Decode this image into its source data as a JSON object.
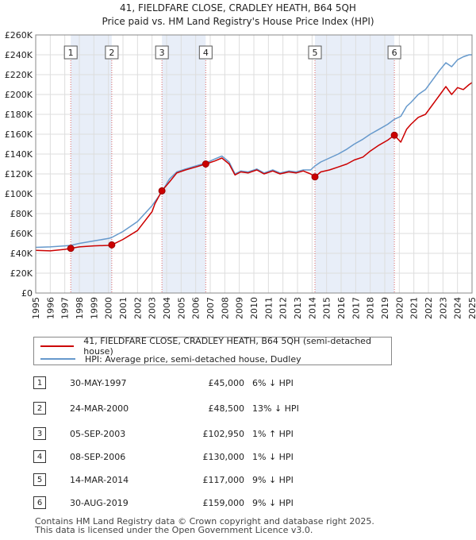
{
  "title_line1": "41, FIELDFARE CLOSE, CRADLEY HEATH, B64 5QH",
  "title_line2": "Price paid vs. HM Land Registry's House Price Index (HPI)",
  "colors": {
    "property": "#cc0000",
    "hpi": "#6699cc",
    "band": "#e8eef8",
    "marker_line": "#dd6666"
  },
  "chart_data": {
    "type": "line",
    "title": "41, FIELDFARE CLOSE, CRADLEY HEATH, B64 5QH",
    "subtitle": "Price paid vs. HM Land Registry's House Price Index (HPI)",
    "xlabel": "",
    "ylabel": "",
    "xlim": [
      1995,
      2025
    ],
    "ylim": [
      0,
      260000
    ],
    "x_ticks": [
      1995,
      1996,
      1997,
      1998,
      1999,
      2000,
      2001,
      2002,
      2003,
      2004,
      2005,
      2006,
      2007,
      2008,
      2009,
      2010,
      2011,
      2012,
      2013,
      2014,
      2015,
      2016,
      2017,
      2018,
      2019,
      2020,
      2021,
      2022,
      2023,
      2024,
      2025
    ],
    "y_ticks": [
      0,
      20000,
      40000,
      60000,
      80000,
      100000,
      120000,
      140000,
      160000,
      180000,
      200000,
      220000,
      240000,
      260000
    ],
    "y_tick_labels": [
      "£0",
      "£20K",
      "£40K",
      "£60K",
      "£80K",
      "£100K",
      "£120K",
      "£140K",
      "£160K",
      "£180K",
      "£200K",
      "£220K",
      "£240K",
      "£260K"
    ],
    "grid": true,
    "shaded_bands": [
      [
        1997.41,
        2000.23
      ],
      [
        2003.68,
        2006.69
      ],
      [
        2014.2,
        2019.66
      ]
    ],
    "series": [
      {
        "name": "41, FIELDFARE CLOSE, CRADLEY HEATH, B64 5QH (semi-detached house)",
        "x": [
          1995.0,
          1996.0,
          1997.0,
          1997.41,
          1998.0,
          1999.0,
          2000.0,
          2000.23,
          2001.0,
          2002.0,
          2003.0,
          2003.2,
          2003.68,
          2004.2,
          2004.7,
          2005.3,
          2006.0,
          2006.69,
          2007.3,
          2007.8,
          2008.3,
          2008.7,
          2009.1,
          2009.6,
          2010.2,
          2010.7,
          2011.3,
          2011.8,
          2012.4,
          2012.9,
          2013.4,
          2013.9,
          2014.2,
          2014.6,
          2015.2,
          2015.8,
          2016.4,
          2016.9,
          2017.5,
          2018.0,
          2018.6,
          2019.2,
          2019.66,
          2020.1,
          2020.5,
          2020.8,
          2021.3,
          2021.8,
          2022.3,
          2022.8,
          2023.2,
          2023.6,
          2024.0,
          2024.4,
          2024.8,
          2025.0
        ],
        "values": [
          43000,
          42500,
          44000,
          45000,
          46500,
          47500,
          48000,
          48500,
          54000,
          63000,
          82000,
          90000,
          102950,
          112000,
          121000,
          124000,
          127000,
          130000,
          133000,
          136000,
          130000,
          119000,
          122000,
          121000,
          124000,
          120000,
          123000,
          120000,
          122000,
          121000,
          123000,
          120000,
          117000,
          122000,
          124000,
          127000,
          130000,
          134000,
          137000,
          143000,
          149000,
          154000,
          159000,
          152000,
          165000,
          170000,
          177000,
          180000,
          190000,
          200000,
          208000,
          200000,
          207000,
          205000,
          210000,
          212000
        ]
      },
      {
        "name": "HPI: Average price, semi-detached house, Dudley",
        "x": [
          1995.0,
          1996.0,
          1997.0,
          1997.41,
          1998.0,
          1999.0,
          2000.0,
          2000.23,
          2001.0,
          2002.0,
          2003.0,
          2003.68,
          2004.2,
          2004.7,
          2005.3,
          2006.0,
          2006.69,
          2007.3,
          2007.8,
          2008.3,
          2008.7,
          2009.1,
          2009.6,
          2010.2,
          2010.7,
          2011.3,
          2011.8,
          2012.4,
          2012.9,
          2013.4,
          2013.9,
          2014.2,
          2014.6,
          2015.2,
          2015.8,
          2016.4,
          2016.9,
          2017.5,
          2018.0,
          2018.6,
          2019.2,
          2019.66,
          2020.1,
          2020.5,
          2020.8,
          2021.3,
          2021.8,
          2022.3,
          2022.8,
          2023.2,
          2023.6,
          2024.0,
          2024.4,
          2024.8,
          2025.0
        ],
        "values": [
          46000,
          46500,
          47500,
          48000,
          50000,
          52500,
          55000,
          56000,
          62000,
          72000,
          88000,
          102000,
          115000,
          122000,
          125000,
          128000,
          131000,
          135000,
          138000,
          132000,
          120000,
          123000,
          122000,
          125000,
          121000,
          124000,
          121000,
          123000,
          122000,
          124000,
          124000,
          128000,
          132000,
          136000,
          140000,
          145000,
          150000,
          155000,
          160000,
          165000,
          170000,
          175000,
          178000,
          188000,
          192000,
          200000,
          205000,
          215000,
          225000,
          232000,
          228000,
          235000,
          238000,
          240000,
          240000
        ]
      }
    ],
    "sales": [
      {
        "n": "1",
        "x": 1997.41,
        "y": 45000
      },
      {
        "n": "2",
        "x": 2000.23,
        "y": 48500
      },
      {
        "n": "3",
        "x": 2003.68,
        "y": 102950
      },
      {
        "n": "4",
        "x": 2006.69,
        "y": 130000
      },
      {
        "n": "5",
        "x": 2014.2,
        "y": 117000
      },
      {
        "n": "6",
        "x": 2019.66,
        "y": 159000
      }
    ]
  },
  "legend": {
    "property_label": "41, FIELDFARE CLOSE, CRADLEY HEATH, B64 5QH (semi-detached house)",
    "hpi_label": "HPI: Average price, semi-detached house, Dudley"
  },
  "transactions": [
    {
      "n": "1",
      "date": "30-MAY-1997",
      "price": "£45,000",
      "hpi": "6% ↓ HPI"
    },
    {
      "n": "2",
      "date": "24-MAR-2000",
      "price": "£48,500",
      "hpi": "13% ↓ HPI"
    },
    {
      "n": "3",
      "date": "05-SEP-2003",
      "price": "£102,950",
      "hpi": "1% ↑ HPI"
    },
    {
      "n": "4",
      "date": "08-SEP-2006",
      "price": "£130,000",
      "hpi": "1% ↓ HPI"
    },
    {
      "n": "5",
      "date": "14-MAR-2014",
      "price": "£117,000",
      "hpi": "9% ↓ HPI"
    },
    {
      "n": "6",
      "date": "30-AUG-2019",
      "price": "£159,000",
      "hpi": "9% ↓ HPI"
    }
  ],
  "footer": {
    "line1": "Contains HM Land Registry data © Crown copyright and database right 2025.",
    "line2": "This data is licensed under the Open Government Licence v3.0."
  }
}
